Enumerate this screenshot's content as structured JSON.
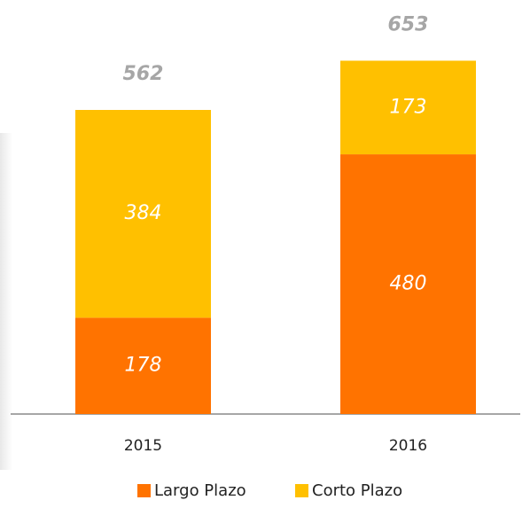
{
  "chart_data": {
    "type": "stacked_bar",
    "categories": [
      "2015",
      "2016"
    ],
    "series": [
      {
        "name": "Largo Plazo",
        "color": "#ff7300",
        "values": [
          178,
          480
        ]
      },
      {
        "name": "Corto Plazo",
        "color": "#ffc000",
        "values": [
          384,
          173
        ]
      }
    ],
    "totals": [
      562,
      653
    ]
  }
}
